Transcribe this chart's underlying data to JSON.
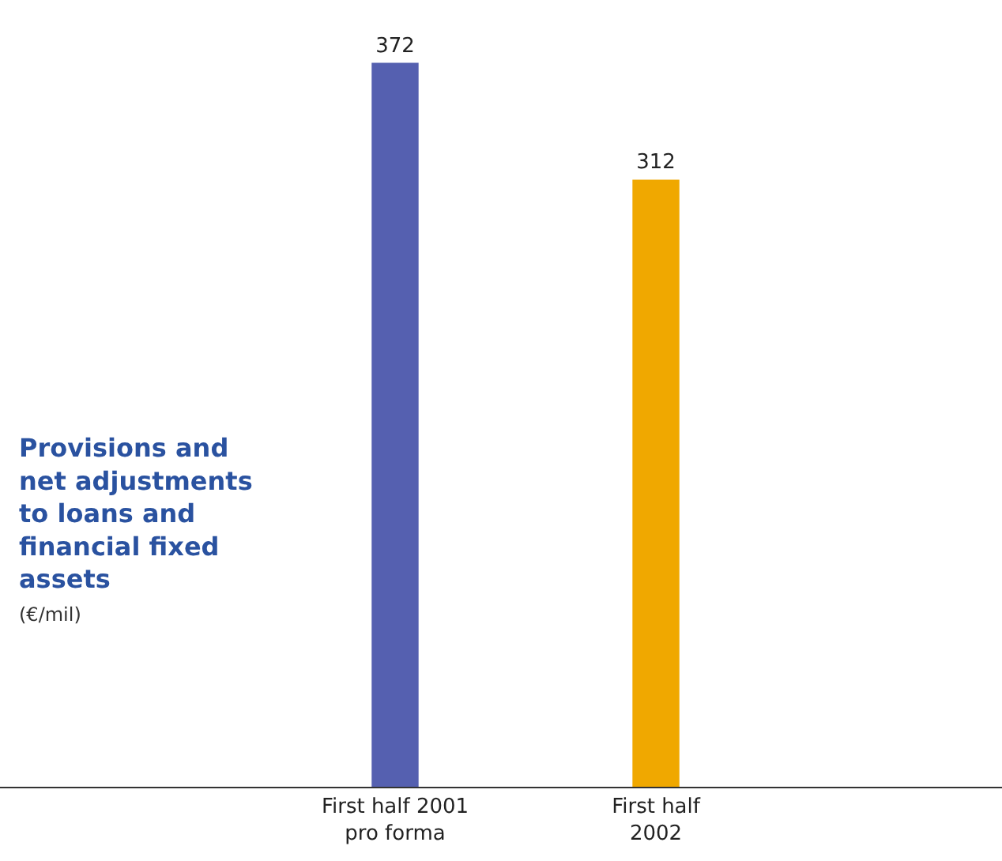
{
  "chart_data": {
    "type": "bar",
    "title": "Provisions and net adjustments to loans and financial fixed assets",
    "subtitle": "(€/mil)",
    "categories": [
      "First half 2001\npro forma",
      "First half\n2002"
    ],
    "values": [
      372,
      312
    ],
    "colors": [
      "#5560b0",
      "#f0a800"
    ],
    "data_labels": true,
    "legend": false
  }
}
